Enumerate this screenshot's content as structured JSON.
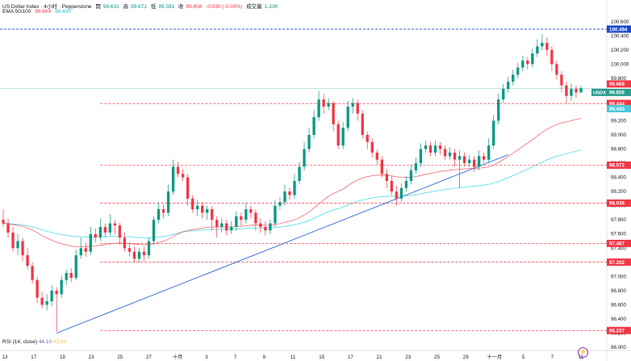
{
  "header": {
    "symbol": "US Dollar Index · 4小时 · Pepperstone",
    "open_label": "開",
    "open": "99.631",
    "high_label": "高",
    "high": "99.671",
    "low_label": "低",
    "low": "99.591",
    "close_label": "收",
    "close": "99.656",
    "change": "-0.030 (-0.03%)",
    "volume_label": "成交量",
    "volume": "1.33K",
    "ema_label": "EMA 50/100",
    "ema50": "99.669",
    "ema100": "99.400"
  },
  "rsi_legend": {
    "label": "RSI (14, close)",
    "v1": "44.10",
    "v2": "42.66"
  },
  "price_scale_ticks": [
    "100.600",
    "100.400",
    "100.200",
    "100.000",
    "99.800",
    "99.600",
    "99.400",
    "99.200",
    "99.000",
    "98.800",
    "98.600",
    "98.400",
    "98.200",
    "98.000",
    "97.800",
    "97.600",
    "97.400",
    "97.200",
    "97.000",
    "96.800",
    "96.600",
    "96.400",
    "96.200",
    "96.000"
  ],
  "time_axis_labels": [
    "13",
    "17",
    "19",
    "23",
    "25",
    "27",
    "十月",
    "3",
    "7",
    "9",
    "11",
    "15",
    "17",
    "21",
    "23",
    "25",
    "29",
    "十一月",
    "5",
    "7",
    "11"
  ],
  "price_tags": [
    {
      "value": "100.494",
      "color": "#1848cc",
      "style": "solid"
    },
    {
      "value": "99.669",
      "color": "#f23645",
      "style": "solid"
    },
    {
      "value": "USDX",
      "color": "#2a9d8f",
      "style": "solid"
    },
    {
      "value": "99.656",
      "color": "#2a9d8f",
      "style": "solid"
    },
    {
      "value": "99.444",
      "color": "#f23645",
      "style": "solid"
    },
    {
      "value": "99.400",
      "color": "#48c9db",
      "style": "solid"
    },
    {
      "value": "98.572",
      "color": "#f23645",
      "style": "solid"
    },
    {
      "value": "98.036",
      "color": "#f23645",
      "style": "solid"
    },
    {
      "value": "97.467",
      "color": "#f23645",
      "style": "solid"
    },
    {
      "value": "97.202",
      "color": "#f23645",
      "style": "solid"
    },
    {
      "value": "96.237",
      "color": "#f23645",
      "style": "solid"
    }
  ],
  "colors": {
    "up": "#089981",
    "down": "#f23645",
    "ema50": "#f23645",
    "ema100": "#6fe0ea",
    "trendline": "#3d6fd9",
    "level": "#f23645",
    "hline_blue": "#1848cc"
  },
  "chart_data": {
    "type": "candlestick",
    "title": "US Dollar Index · 4小时 · Pepperstone",
    "ylim": [
      96.0,
      100.7
    ],
    "grid": false,
    "candles": [
      [
        97.8,
        97.75,
        97.95,
        97.7
      ],
      [
        97.75,
        97.62,
        97.82,
        97.55
      ],
      [
        97.62,
        97.4,
        97.7,
        97.35
      ],
      [
        97.4,
        97.5,
        97.6,
        97.3
      ],
      [
        97.5,
        97.3,
        97.55,
        97.22
      ],
      [
        97.3,
        97.15,
        97.4,
        97.1
      ],
      [
        97.15,
        96.95,
        97.2,
        96.9
      ],
      [
        96.95,
        96.7,
        97.0,
        96.62
      ],
      [
        96.7,
        96.6,
        96.78,
        96.55
      ],
      [
        96.6,
        96.65,
        96.75,
        96.52
      ],
      [
        96.65,
        96.8,
        96.88,
        96.58
      ],
      [
        96.8,
        96.75,
        96.85,
        96.22
      ],
      [
        96.75,
        96.95,
        97.02,
        96.7
      ],
      [
        96.95,
        97.05,
        97.1,
        96.88
      ],
      [
        97.05,
        96.98,
        97.12,
        96.92
      ],
      [
        96.98,
        97.3,
        97.38,
        96.95
      ],
      [
        97.3,
        97.4,
        97.55,
        97.25
      ],
      [
        97.4,
        97.35,
        97.48,
        97.28
      ],
      [
        97.35,
        97.6,
        97.7,
        97.3
      ],
      [
        97.6,
        97.55,
        97.68,
        97.48
      ],
      [
        97.55,
        97.7,
        97.82,
        97.5
      ],
      [
        97.7,
        97.62,
        97.75,
        97.55
      ],
      [
        97.62,
        97.75,
        97.88,
        97.58
      ],
      [
        97.75,
        97.72,
        97.8,
        97.6
      ],
      [
        97.72,
        97.55,
        97.76,
        97.45
      ],
      [
        97.55,
        97.4,
        97.62,
        97.35
      ],
      [
        97.4,
        97.35,
        97.48,
        97.28
      ],
      [
        97.35,
        97.25,
        97.42,
        97.2
      ],
      [
        97.25,
        97.35,
        97.4,
        97.2
      ],
      [
        97.35,
        97.3,
        97.42,
        97.22
      ],
      [
        97.3,
        97.5,
        97.55,
        97.25
      ],
      [
        97.5,
        97.8,
        97.85,
        97.45
      ],
      [
        97.8,
        97.95,
        98.05,
        97.75
      ],
      [
        97.95,
        97.9,
        98.02,
        97.82
      ],
      [
        97.9,
        98.2,
        98.3,
        97.85
      ],
      [
        98.2,
        98.55,
        98.65,
        98.15
      ],
      [
        98.55,
        98.45,
        98.62,
        98.4
      ],
      [
        98.45,
        98.4,
        98.52,
        98.35
      ],
      [
        98.4,
        98.1,
        98.45,
        98.0
      ],
      [
        98.1,
        97.95,
        98.15,
        97.9
      ],
      [
        97.95,
        98.0,
        98.08,
        97.85
      ],
      [
        98.0,
        97.9,
        98.05,
        97.82
      ],
      [
        97.9,
        97.95,
        98.0,
        97.8
      ],
      [
        97.95,
        97.8,
        98.0,
        97.65
      ],
      [
        97.8,
        97.7,
        97.85,
        97.55
      ],
      [
        97.7,
        97.75,
        97.82,
        97.62
      ],
      [
        97.75,
        97.65,
        97.8,
        97.58
      ],
      [
        97.65,
        97.7,
        97.78,
        97.6
      ],
      [
        97.7,
        97.85,
        97.92,
        97.65
      ],
      [
        97.85,
        97.8,
        97.9,
        97.72
      ],
      [
        97.8,
        97.95,
        98.05,
        97.75
      ],
      [
        97.95,
        97.9,
        98.0,
        97.82
      ],
      [
        97.9,
        97.75,
        97.95,
        97.65
      ],
      [
        97.75,
        97.7,
        97.82,
        97.62
      ],
      [
        97.7,
        97.65,
        97.78,
        97.58
      ],
      [
        97.65,
        97.75,
        97.8,
        97.6
      ],
      [
        97.75,
        98.0,
        98.08,
        97.7
      ],
      [
        98.0,
        98.05,
        98.12,
        97.95
      ],
      [
        98.05,
        98.2,
        98.3,
        98.0
      ],
      [
        98.2,
        98.15,
        98.25,
        98.08
      ],
      [
        98.15,
        98.35,
        98.45,
        98.1
      ],
      [
        98.35,
        98.55,
        98.62,
        98.3
      ],
      [
        98.55,
        98.8,
        98.9,
        98.5
      ],
      [
        98.8,
        99.0,
        99.1,
        98.75
      ],
      [
        99.0,
        99.25,
        99.35,
        98.95
      ],
      [
        99.25,
        99.5,
        99.62,
        99.2
      ],
      [
        99.5,
        99.4,
        99.58,
        99.3
      ],
      [
        99.4,
        99.45,
        99.52,
        99.35
      ],
      [
        99.45,
        99.15,
        99.48,
        99.05
      ],
      [
        99.15,
        98.85,
        99.2,
        98.8
      ],
      [
        98.85,
        99.1,
        99.18,
        98.8
      ],
      [
        99.1,
        99.4,
        99.48,
        99.05
      ],
      [
        99.4,
        99.45,
        99.52,
        99.3
      ],
      [
        99.45,
        99.3,
        99.5,
        99.2
      ],
      [
        99.3,
        99.0,
        99.35,
        98.95
      ],
      [
        99.0,
        98.9,
        99.05,
        98.8
      ],
      [
        98.9,
        98.75,
        98.95,
        98.68
      ],
      [
        98.75,
        98.65,
        98.8,
        98.58
      ],
      [
        98.65,
        98.45,
        98.7,
        98.4
      ],
      [
        98.45,
        98.35,
        98.52,
        98.25
      ],
      [
        98.35,
        98.2,
        98.42,
        98.15
      ],
      [
        98.2,
        98.1,
        98.28,
        98.0
      ],
      [
        98.1,
        98.25,
        98.32,
        98.05
      ],
      [
        98.25,
        98.35,
        98.42,
        98.2
      ],
      [
        98.35,
        98.5,
        98.58,
        98.3
      ],
      [
        98.5,
        98.6,
        98.68,
        98.45
      ],
      [
        98.6,
        98.8,
        98.88,
        98.55
      ],
      [
        98.8,
        98.85,
        98.92,
        98.75
      ],
      [
        98.85,
        98.75,
        98.9,
        98.7
      ],
      [
        98.75,
        98.85,
        98.92,
        98.7
      ],
      [
        98.85,
        98.8,
        98.9,
        98.72
      ],
      [
        98.8,
        98.7,
        98.85,
        98.65
      ],
      [
        98.7,
        98.75,
        98.82,
        98.65
      ],
      [
        98.75,
        98.65,
        98.8,
        98.55
      ],
      [
        98.65,
        98.7,
        98.78,
        98.25
      ],
      [
        98.7,
        98.6,
        98.75,
        98.55
      ],
      [
        98.6,
        98.65,
        98.72,
        98.55
      ],
      [
        98.65,
        98.55,
        98.7,
        98.48
      ],
      [
        98.55,
        98.7,
        98.78,
        98.5
      ],
      [
        98.7,
        98.65,
        98.75,
        98.6
      ],
      [
        98.65,
        98.85,
        98.95,
        98.6
      ],
      [
        98.85,
        99.2,
        99.28,
        98.8
      ],
      [
        99.2,
        99.5,
        99.58,
        99.15
      ],
      [
        99.5,
        99.65,
        99.72,
        99.45
      ],
      [
        99.65,
        99.75,
        99.82,
        99.6
      ],
      [
        99.75,
        99.85,
        99.92,
        99.7
      ],
      [
        99.85,
        99.95,
        100.02,
        99.8
      ],
      [
        99.95,
        100.05,
        100.12,
        99.9
      ],
      [
        100.05,
        100.0,
        100.1,
        99.92
      ],
      [
        100.0,
        100.15,
        100.22,
        99.95
      ],
      [
        100.15,
        100.25,
        100.35,
        100.1
      ],
      [
        100.25,
        100.3,
        100.42,
        100.2
      ],
      [
        100.3,
        100.2,
        100.38,
        100.12
      ],
      [
        100.2,
        100.0,
        100.25,
        99.9
      ],
      [
        100.0,
        99.85,
        100.05,
        99.78
      ],
      [
        99.85,
        99.7,
        99.9,
        99.6
      ],
      [
        99.7,
        99.55,
        99.75,
        99.45
      ],
      [
        99.55,
        99.65,
        99.72,
        99.48
      ],
      [
        99.65,
        99.6,
        99.7,
        99.52
      ],
      [
        99.6,
        99.66,
        99.7,
        99.59
      ]
    ],
    "ema50_end": 99.669,
    "ema100_end": 99.4,
    "levels": [
      99.444,
      98.572,
      98.036,
      97.467,
      97.202,
      96.237
    ],
    "blue_level": 100.494,
    "current_price": 99.656
  }
}
